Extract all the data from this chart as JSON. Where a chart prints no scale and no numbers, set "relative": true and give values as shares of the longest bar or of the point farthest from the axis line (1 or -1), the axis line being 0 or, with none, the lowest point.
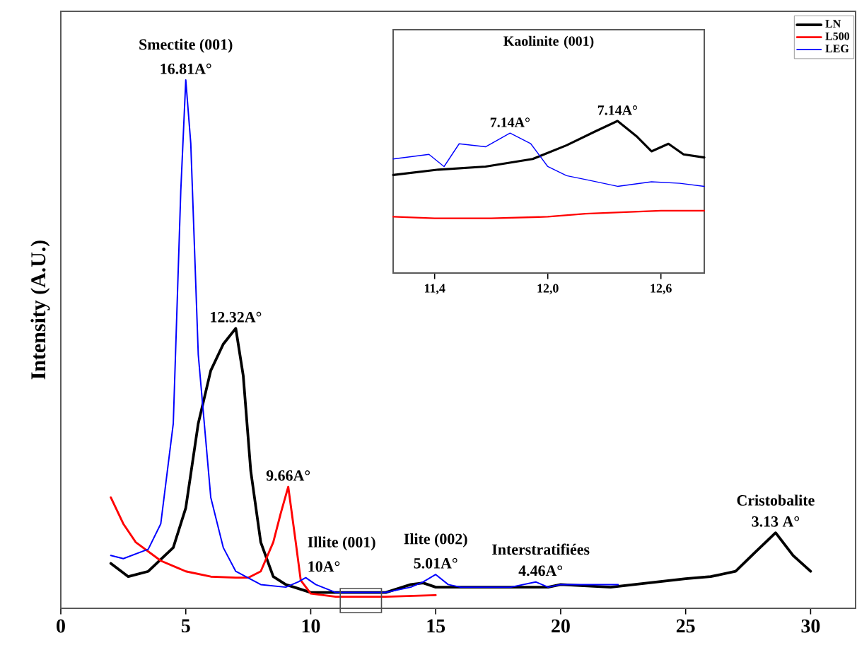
{
  "chart_data": [
    {
      "type": "line",
      "relative": true,
      "ylabel": "Intensity (A.U.)",
      "xlim": [
        0,
        31.8
      ],
      "xticks": [
        0,
        5,
        10,
        15,
        20,
        25,
        30
      ],
      "tick_labels": "x",
      "legend": "top right",
      "series": [
        {
          "name": "LN",
          "color": "#000000",
          "x": [
            2,
            2.7,
            3.5,
            4.5,
            5,
            5.5,
            6,
            6.5,
            7,
            7.3,
            7.6,
            8,
            8.5,
            9,
            10,
            11,
            12,
            13,
            14,
            14.5,
            15,
            16,
            17,
            18,
            19,
            19.5,
            20,
            22,
            25,
            26,
            27,
            27.8,
            28.6,
            29.3,
            30
          ],
          "values": [
            0.085,
            0.06,
            0.07,
            0.115,
            0.19,
            0.35,
            0.45,
            0.5,
            0.53,
            0.44,
            0.26,
            0.125,
            0.06,
            0.045,
            0.03,
            0.03,
            0.03,
            0.03,
            0.045,
            0.048,
            0.04,
            0.04,
            0.04,
            0.04,
            0.04,
            0.04,
            0.045,
            0.04,
            0.056,
            0.06,
            0.07,
            0.107,
            0.143,
            0.1,
            0.07
          ]
        },
        {
          "name": "L500",
          "color": "#ff0000",
          "x": [
            2,
            2.5,
            3,
            4,
            5,
            6,
            7,
            7.5,
            8,
            8.5,
            8.8,
            9.1,
            9.4,
            9.6,
            10,
            11,
            13,
            15
          ],
          "values": [
            0.21,
            0.16,
            0.125,
            0.09,
            0.07,
            0.06,
            0.058,
            0.058,
            0.07,
            0.125,
            0.18,
            0.23,
            0.125,
            0.053,
            0.028,
            0.022,
            0.022,
            0.025
          ]
        },
        {
          "name": "LEG",
          "color": "#0000ff",
          "x": [
            2,
            2.5,
            3.5,
            4,
            4.5,
            4.8,
            5,
            5.2,
            5.5,
            6,
            6.5,
            7,
            8,
            9,
            9.5,
            9.8,
            10.2,
            11,
            12,
            13,
            14,
            14.5,
            15,
            15.5,
            16,
            17,
            18,
            19,
            19.5,
            20,
            21,
            22.3
          ],
          "values": [
            0.1,
            0.094,
            0.112,
            0.16,
            0.35,
            0.79,
            1.0,
            0.88,
            0.48,
            0.21,
            0.115,
            0.07,
            0.045,
            0.04,
            0.05,
            0.058,
            0.045,
            0.03,
            0.03,
            0.03,
            0.04,
            0.05,
            0.064,
            0.045,
            0.04,
            0.04,
            0.04,
            0.05,
            0.04,
            0.045,
            0.045,
            0.045
          ]
        }
      ],
      "annotations": [
        {
          "text": "Smectite (001)",
          "x": 5,
          "y": 1.0
        },
        {
          "text": "16.81A°",
          "x": 5,
          "y": 1.0
        },
        {
          "text": "12.32A°",
          "x": 7,
          "y": 0.53
        },
        {
          "text": "9.66A°",
          "x": 9.1,
          "y": 0.23
        },
        {
          "text": "Illite (001)",
          "x": 9.8,
          "y": 0.058
        },
        {
          "text": "10A°",
          "x": 9.8,
          "y": 0.058
        },
        {
          "text": "Ilite (002)",
          "x": 15,
          "y": 0.064
        },
        {
          "text": "5.01A°",
          "x": 15,
          "y": 0.064
        },
        {
          "text": "Interstratifiées",
          "x": 19.2,
          "y": 0.05
        },
        {
          "text": "4.46A°",
          "x": 19.2,
          "y": 0.05
        },
        {
          "text": "Cristobalite",
          "x": 28.6,
          "y": 0.143
        },
        {
          "text": "3.13 A°",
          "x": 28.6,
          "y": 0.143
        }
      ]
    },
    {
      "type": "line",
      "relative": true,
      "title": "Kaolinite (001)",
      "xlim": [
        11.18,
        12.83
      ],
      "xticks": [
        {
          "value": 11.4,
          "label": "11,4"
        },
        {
          "value": 12.0,
          "label": "12,0"
        },
        {
          "value": 12.6,
          "label": "12,6"
        }
      ],
      "tick_labels": "x",
      "series": [
        {
          "color": "#000000",
          "x": [
            11.18,
            11.42,
            11.67,
            11.92,
            12.1,
            12.25,
            12.37,
            12.47,
            12.55,
            12.64,
            12.72,
            12.83
          ],
          "values": [
            0.645,
            0.68,
            0.7,
            0.75,
            0.84,
            0.93,
            1.0,
            0.9,
            0.8,
            0.85,
            0.78,
            0.76
          ]
        },
        {
          "color": "#ff0000",
          "x": [
            11.18,
            11.4,
            11.7,
            12.0,
            12.2,
            12.4,
            12.6,
            12.83
          ],
          "values": [
            0.37,
            0.36,
            0.36,
            0.37,
            0.39,
            0.4,
            0.41,
            0.41
          ]
        },
        {
          "color": "#0000ff",
          "x": [
            11.18,
            11.37,
            11.45,
            11.53,
            11.67,
            11.8,
            11.91,
            12.0,
            12.1,
            12.22,
            12.37,
            12.55,
            12.7,
            12.83
          ],
          "values": [
            0.75,
            0.78,
            0.7,
            0.85,
            0.83,
            0.92,
            0.85,
            0.7,
            0.64,
            0.61,
            0.57,
            0.6,
            0.59,
            0.57
          ]
        }
      ],
      "annotations": [
        {
          "text": "7.14A°",
          "x": 11.8,
          "y": 0.92
        },
        {
          "text": "7.14A°",
          "x": 12.37,
          "y": 1.0
        }
      ]
    }
  ]
}
